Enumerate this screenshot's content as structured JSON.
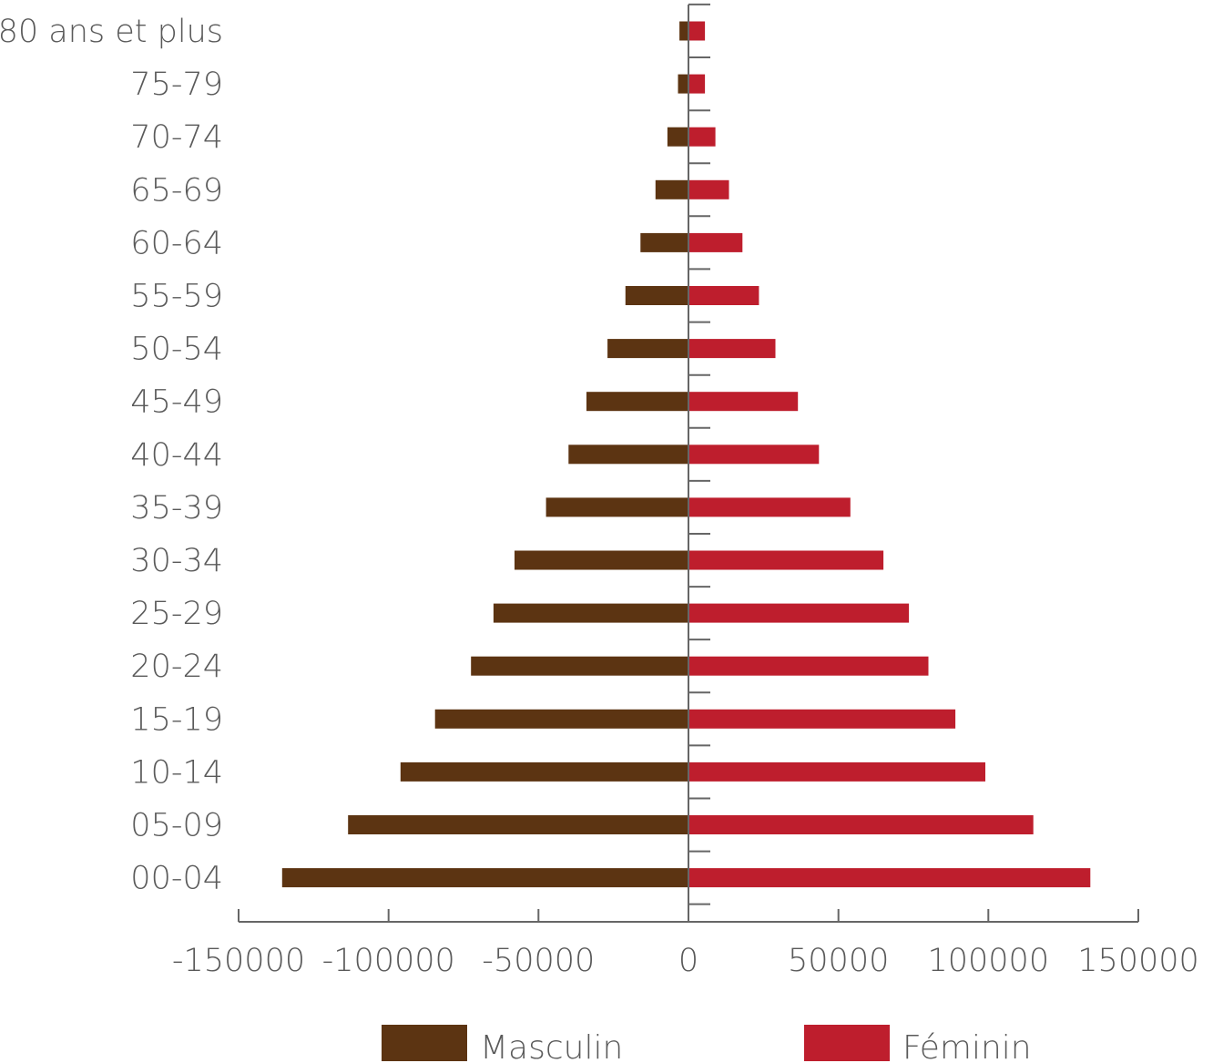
{
  "chart_data": {
    "type": "bar",
    "orientation": "horizontal",
    "categories": [
      "80 ans et plus",
      "75-79",
      "70-74",
      "65-69",
      "60-64",
      "55-59",
      "50-54",
      "45-49",
      "40-44",
      "35-39",
      "30-34",
      "25-29",
      "20-24",
      "15-19",
      "10-14",
      "05-09",
      "00-04"
    ],
    "series": [
      {
        "name": "Masculin",
        "color": "#5c3412",
        "values": [
          -3000,
          -3500,
          -7000,
          -11000,
          -16000,
          -21000,
          -27000,
          -34000,
          -40000,
          -47500,
          -58000,
          -65000,
          -72500,
          -84500,
          -96000,
          -113500,
          -135500
        ]
      },
      {
        "name": "Féminin",
        "color": "#be1e2d",
        "values": [
          5500,
          5500,
          9000,
          13500,
          18000,
          23500,
          29000,
          36500,
          43500,
          54000,
          65000,
          73500,
          80000,
          89000,
          99000,
          115000,
          134000
        ]
      }
    ],
    "x_ticks": [
      "-150000",
      "-100000",
      "-50000",
      "0",
      "50000",
      "100000",
      "150000"
    ],
    "xlim": [
      -150000,
      150000
    ],
    "legend_position": "bottom",
    "grid": false,
    "title": "",
    "xlabel": "",
    "ylabel": ""
  }
}
